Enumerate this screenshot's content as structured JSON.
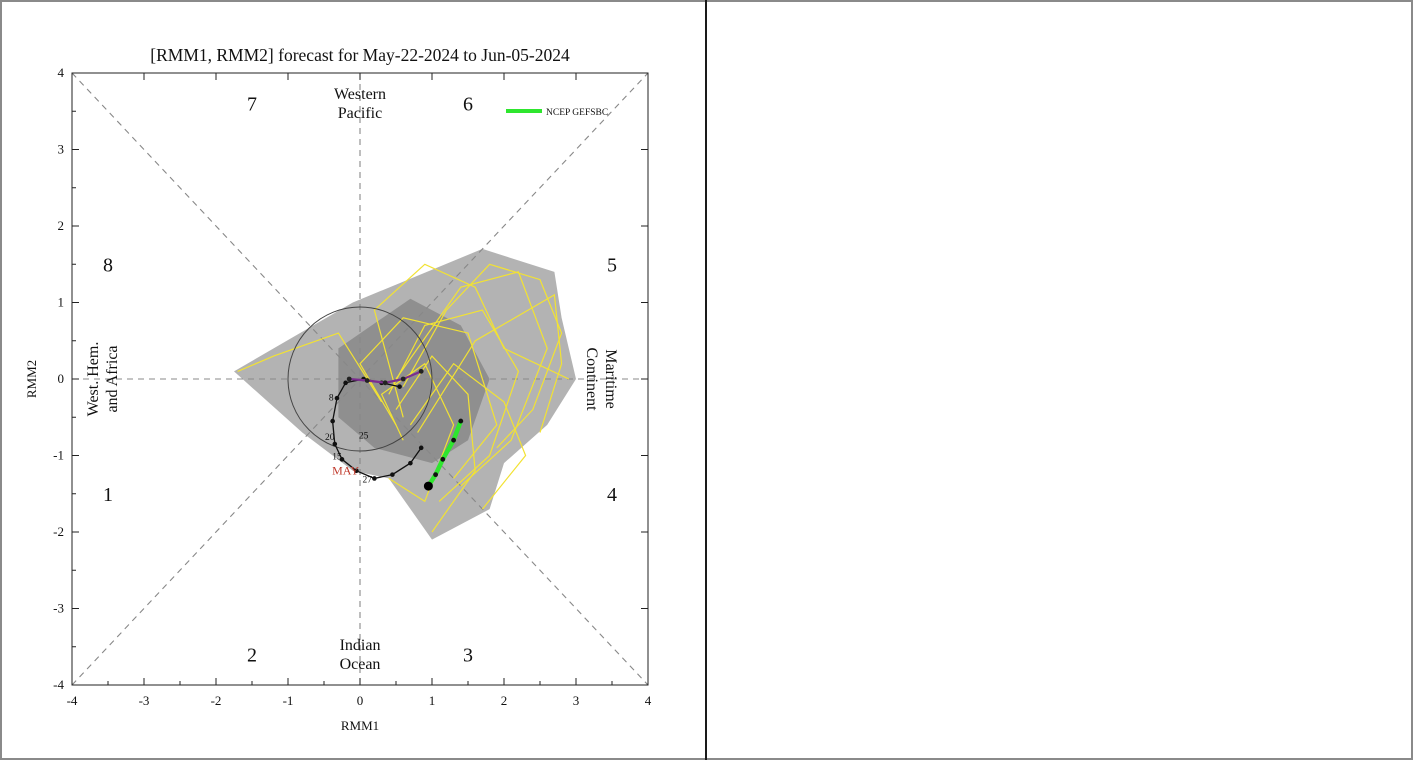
{
  "chart_data": {
    "type": "scatter",
    "title": "[RMM1, RMM2] forecast for May-22-2024 to Jun-05-2024",
    "xlabel": "RMM1",
    "ylabel": "RMM2",
    "xlim": [
      -4,
      4
    ],
    "ylim": [
      -4,
      4
    ],
    "xticks": [
      "-4",
      "-3",
      "-2",
      "-1",
      "0",
      "1",
      "2",
      "3",
      "4"
    ],
    "yticks": [
      "-4",
      "-3",
      "-2",
      "-1",
      "0",
      "1",
      "2",
      "3",
      "4"
    ],
    "phases": [
      {
        "label": "7",
        "x": -1.5,
        "y": 3.6
      },
      {
        "label": "6",
        "x": 1.5,
        "y": 3.6
      },
      {
        "label": "8",
        "x": -3.5,
        "y": 1.5
      },
      {
        "label": "5",
        "x": 3.5,
        "y": 1.5
      },
      {
        "label": "1",
        "x": -3.5,
        "y": -1.5
      },
      {
        "label": "4",
        "x": 3.5,
        "y": -1.5
      },
      {
        "label": "2",
        "x": -1.5,
        "y": -3.6
      },
      {
        "label": "3",
        "x": 1.5,
        "y": -3.6
      }
    ],
    "regions": {
      "top_line1": "Western",
      "top_line2": "Pacific",
      "bottom_line1": "Indian",
      "bottom_line2": "Ocean",
      "left_line1": "West. Hem.",
      "left_line2": "and Africa",
      "right_line1": "Maritime",
      "right_line2": "Continent"
    },
    "legend": {
      "label": "NCEP GEFSBC",
      "color": "#2ee62e",
      "placement": "top-right"
    },
    "month_labels": [
      {
        "label": "MAY",
        "x": -0.2,
        "y": -1.25,
        "color": "#c0392b"
      }
    ],
    "observed": {
      "color": "#111111",
      "points": [
        {
          "x": 0.55,
          "y": -0.1
        },
        {
          "x": 0.3,
          "y": -0.05
        },
        {
          "x": 0.05,
          "y": 0.0
        },
        {
          "x": -0.2,
          "y": -0.05
        },
        {
          "x": -0.32,
          "y": -0.25
        },
        {
          "x": -0.38,
          "y": -0.55
        },
        {
          "x": -0.35,
          "y": -0.85
        },
        {
          "x": -0.25,
          "y": -1.05
        },
        {
          "x": -0.05,
          "y": -1.2
        },
        {
          "x": 0.2,
          "y": -1.3
        },
        {
          "x": 0.45,
          "y": -1.25
        },
        {
          "x": 0.7,
          "y": -1.1
        },
        {
          "x": 0.85,
          "y": -0.9
        }
      ]
    },
    "date_labels": [
      {
        "label": "8",
        "x": -0.4,
        "y": -0.28
      },
      {
        "label": "15",
        "x": -0.32,
        "y": -1.05
      },
      {
        "label": "20",
        "x": -0.42,
        "y": -0.8
      },
      {
        "label": "25",
        "x": 0.05,
        "y": -0.78
      },
      {
        "label": "27",
        "x": 0.1,
        "y": -1.35
      }
    ],
    "forecast_mean": {
      "color": "#7b2d8e",
      "points": [
        {
          "x": 0.85,
          "y": 0.1
        },
        {
          "x": 0.6,
          "y": 0.0
        },
        {
          "x": 0.35,
          "y": -0.05
        },
        {
          "x": 0.1,
          "y": -0.02
        },
        {
          "x": -0.15,
          "y": 0.0
        }
      ]
    },
    "gefsbc": {
      "color": "#2ee62e",
      "points": [
        {
          "x": 1.4,
          "y": -0.55
        },
        {
          "x": 1.3,
          "y": -0.8
        },
        {
          "x": 1.15,
          "y": -1.05
        },
        {
          "x": 1.05,
          "y": -1.25
        },
        {
          "x": 0.95,
          "y": -1.4
        }
      ]
    },
    "spread_outer": [
      {
        "x": -1.75,
        "y": 0.1
      },
      {
        "x": -0.1,
        "y": 1.0
      },
      {
        "x": 1.7,
        "y": 1.7
      },
      {
        "x": 2.7,
        "y": 1.4
      },
      {
        "x": 2.8,
        "y": 0.8
      },
      {
        "x": 3.0,
        "y": 0.0
      },
      {
        "x": 2.6,
        "y": -0.6
      },
      {
        "x": 2.0,
        "y": -1.1
      },
      {
        "x": 1.8,
        "y": -1.7
      },
      {
        "x": 1.0,
        "y": -2.1
      },
      {
        "x": 0.4,
        "y": -1.3
      },
      {
        "x": -0.1,
        "y": -1.2
      },
      {
        "x": -0.8,
        "y": -0.7
      }
    ],
    "spread_inner": [
      {
        "x": -0.3,
        "y": 0.4
      },
      {
        "x": 0.7,
        "y": 1.05
      },
      {
        "x": 1.4,
        "y": 0.7
      },
      {
        "x": 1.8,
        "y": 0.0
      },
      {
        "x": 1.5,
        "y": -0.8
      },
      {
        "x": 1.0,
        "y": -1.1
      },
      {
        "x": 0.2,
        "y": -0.9
      },
      {
        "x": -0.3,
        "y": -0.5
      }
    ],
    "unit_circle": {
      "radius": 1,
      "center": [
        0,
        0
      ]
    },
    "grid": false
  }
}
